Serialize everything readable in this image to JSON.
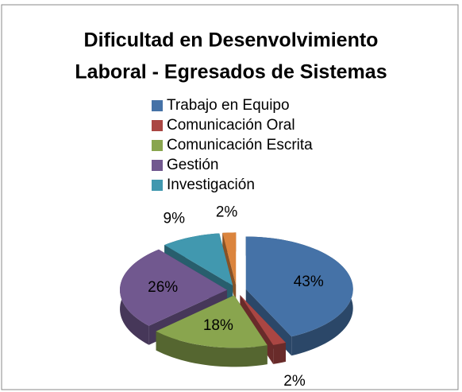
{
  "chart_data": {
    "type": "pie",
    "title": [
      "Dificultad en Desenvolvimiento",
      "Laboral - Egresados de Sistemas"
    ],
    "categories": [
      "Trabajo en Equipo",
      "Comunicación Oral",
      "Comunicación Escrita",
      "Gestión",
      "Investigación",
      null
    ],
    "values": [
      43,
      2,
      18,
      26,
      9,
      2
    ],
    "value_labels": [
      "43%",
      "2%",
      "18%",
      "26%",
      "9%",
      "2%"
    ],
    "colors": [
      "#4572a7",
      "#aa4643",
      "#89a54e",
      "#71588f",
      "#4198af",
      "#db843d"
    ],
    "legend": "top"
  }
}
